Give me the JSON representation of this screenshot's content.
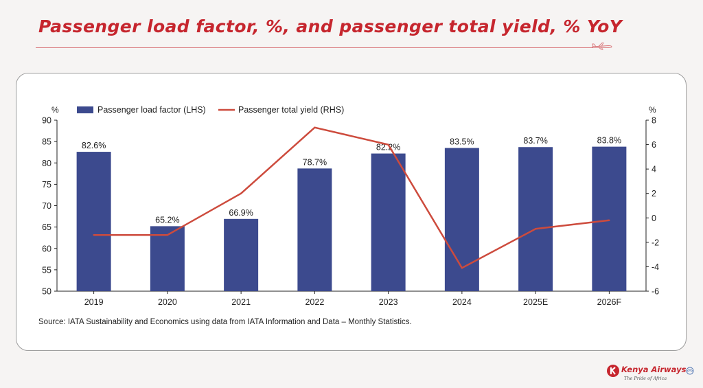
{
  "slide": {
    "title": "Passenger load factor, %, and passenger total yield, % YoY"
  },
  "chart_data": {
    "type": "bar",
    "categories": [
      "2019",
      "2020",
      "2021",
      "2022",
      "2023",
      "2024",
      "2025E",
      "2026F"
    ],
    "series": [
      {
        "name": "Passenger load factor (LHS)",
        "type": "bar",
        "axis": "left",
        "values": [
          82.6,
          65.2,
          66.9,
          78.7,
          82.2,
          83.5,
          83.7,
          83.8
        ],
        "labels": [
          "82.6%",
          "65.2%",
          "66.9%",
          "78.7%",
          "82.2%",
          "83.5%",
          "83.7%",
          "83.8%"
        ],
        "color": "#3c4a8e"
      },
      {
        "name": "Passenger total yield (RHS)",
        "type": "line",
        "axis": "right",
        "values": [
          -1.4,
          -1.4,
          2.0,
          7.4,
          6.0,
          -4.1,
          -0.9,
          -0.2
        ],
        "color": "#cd4b3d"
      }
    ],
    "y_left": {
      "unit": "%",
      "min": 50,
      "max": 90,
      "ticks": [
        50,
        55,
        60,
        65,
        70,
        75,
        80,
        85,
        90
      ]
    },
    "y_right": {
      "unit": "%",
      "min": -6,
      "max": 8,
      "ticks": [
        -6,
        -4,
        -2,
        0,
        2,
        4,
        6,
        8
      ]
    },
    "legend_position": "top-left",
    "grid": false,
    "source": "Source: IATA Sustainability and Economics using data from IATA Information and Data – Monthly Statistics."
  },
  "branding": {
    "name": "Kenya Airways",
    "tagline": "The Pride of Africa",
    "accent_color": "#c6262e",
    "icons": [
      "airplane-icon",
      "kenya-airways-logo-icon",
      "skyteam-icon"
    ]
  }
}
